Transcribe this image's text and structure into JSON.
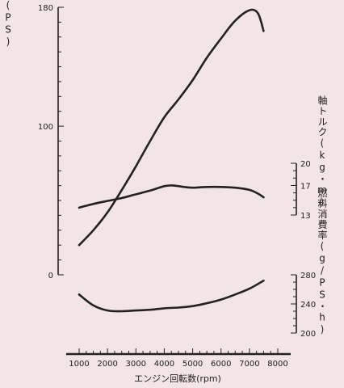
{
  "chart_data": {
    "type": "line",
    "title": "",
    "xlabel": "エンジン回転数(rpm)",
    "x_ticks": [
      1000,
      2000,
      3000,
      4000,
      5000,
      6000,
      7000,
      8000
    ],
    "xlim": [
      1000,
      8000
    ],
    "axes": {
      "power": {
        "label": "軸出力(PS)",
        "ylim": [
          0,
          180
        ],
        "ticks": [
          0,
          100,
          180
        ]
      },
      "torque": {
        "label": "軸トルク(kg・m)",
        "ylim": [
          13,
          20
        ],
        "ticks": [
          13,
          17,
          20
        ]
      },
      "fuel": {
        "label": "燃料消費率(g/PS・h)",
        "ylim": [
          200,
          280
        ],
        "ticks": [
          200,
          240,
          280
        ]
      }
    },
    "series": [
      {
        "axis": "power",
        "x": [
          1000,
          1500,
          2000,
          2500,
          3000,
          3500,
          4000,
          4500,
          5000,
          5500,
          6000,
          6500,
          7000,
          7300,
          7500
        ],
        "values": [
          20,
          30,
          42,
          57,
          73,
          90,
          106,
          118,
          131,
          146,
          159,
          171,
          178,
          176,
          164
        ]
      },
      {
        "axis": "torque",
        "x": [
          1000,
          1500,
          2000,
          2500,
          3000,
          3500,
          4000,
          4300,
          4700,
          5000,
          5500,
          6000,
          6500,
          7000,
          7300,
          7500
        ],
        "values": [
          14.0,
          14.5,
          14.9,
          15.3,
          15.8,
          16.3,
          16.9,
          17.0,
          16.8,
          16.7,
          16.8,
          16.8,
          16.7,
          16.4,
          15.9,
          15.4
        ]
      },
      {
        "axis": "fuel",
        "x": [
          1000,
          1500,
          2000,
          2500,
          3000,
          3500,
          4000,
          4500,
          5000,
          5500,
          6000,
          6500,
          7000,
          7500
        ],
        "values": [
          253,
          238,
          231,
          230,
          231,
          232,
          234,
          235,
          237,
          241,
          246,
          253,
          261,
          272
        ]
      }
    ]
  }
}
